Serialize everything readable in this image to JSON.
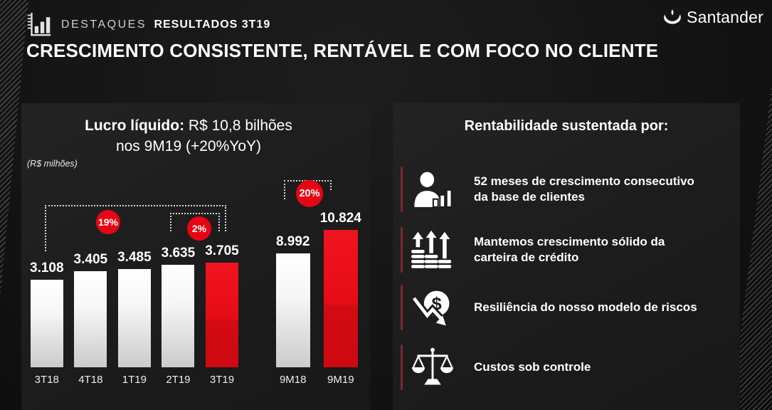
{
  "header": {
    "eyebrow_light": "DESTAQUES",
    "eyebrow_bold": "RESULTADOS 3T19",
    "title": "CRESCIMENTO CONSISTENTE, RENTÁVEL E COM FOCO NO CLIENTE",
    "brand": "Santander"
  },
  "profit_panel": {
    "headline_label": "Lucro líquido:",
    "headline_value": " R$ 10,8 bilhões",
    "headline_line2": "nos 9M19 (+20%YoY)",
    "unit_note": "(R$ milhões)"
  },
  "chart_data": {
    "type": "bar",
    "title": "Lucro líquido nos 9M19",
    "unit": "R$ milhões",
    "categories": [
      "3T18",
      "4T18",
      "1T19",
      "2T19",
      "3T19",
      "9M18",
      "9M19"
    ],
    "values": [
      3108,
      3405,
      3485,
      3635,
      3705,
      8992,
      10824
    ],
    "bars": [
      {
        "label": "3T18",
        "value": 3108,
        "display": "3.108",
        "group": "quarter",
        "highlight": false
      },
      {
        "label": "4T18",
        "value": 3405,
        "display": "3.405",
        "group": "quarter",
        "highlight": false
      },
      {
        "label": "1T19",
        "value": 3485,
        "display": "3.485",
        "group": "quarter",
        "highlight": false
      },
      {
        "label": "2T19",
        "value": 3635,
        "display": "3.635",
        "group": "quarter",
        "highlight": false
      },
      {
        "label": "3T19",
        "value": 3705,
        "display": "3.705",
        "group": "quarter",
        "highlight": true
      },
      {
        "label": "9M18",
        "value": 8992,
        "display": "8.992",
        "group": "nine_month",
        "highlight": false
      },
      {
        "label": "9M19",
        "value": 10824,
        "display": "10.824",
        "group": "nine_month",
        "highlight": true
      }
    ],
    "annotations": [
      {
        "label": "19%",
        "compares": [
          "3T18",
          "3T19"
        ]
      },
      {
        "label": "2%",
        "compares": [
          "2T19",
          "3T19"
        ]
      },
      {
        "label": "20%",
        "compares": [
          "9M18",
          "9M19"
        ]
      }
    ],
    "colors": {
      "bar_default": "#ffffff",
      "bar_highlight": "#e30613",
      "badge": "#e60613",
      "accent_line": "#7d282c"
    },
    "legend": "none",
    "grid": "off"
  },
  "profitability_panel": {
    "title": "Rentabilidade sustentada por:",
    "items": [
      {
        "icon": "person-growth-icon",
        "text": "52 meses de crescimento consecutivo\nda base de clientes"
      },
      {
        "icon": "rising-arrows-icon",
        "text": "Mantemos crescimento sólido da\ncarteira de crédito"
      },
      {
        "icon": "dollar-risk-icon",
        "text": "Resiliência do nosso modelo de riscos"
      },
      {
        "icon": "balance-scale-icon",
        "text": "Custos sob controle"
      }
    ]
  }
}
